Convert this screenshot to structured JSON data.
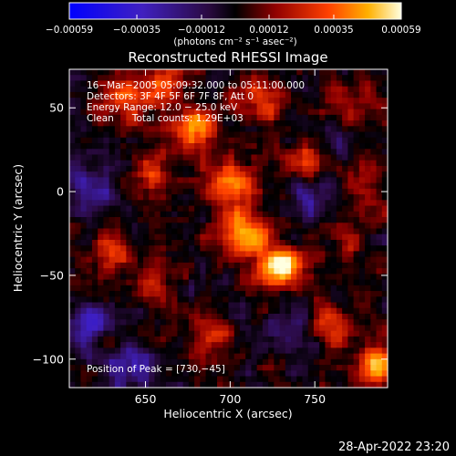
{
  "chart_data": {
    "type": "heatmap",
    "title": "Reconstructed RHESSI Image",
    "xlabel": "Heliocentric X (arcsec)",
    "ylabel": "Heliocentric Y (arcsec)",
    "xlim": [
      605,
      793
    ],
    "ylim": [
      -117,
      73
    ],
    "x_ticks": [
      650,
      700,
      750
    ],
    "y_ticks": [
      50,
      0,
      -50,
      -100
    ],
    "x_tick_labels": [
      "650",
      "700",
      "750"
    ],
    "y_tick_labels": [
      "50",
      "0",
      "−50",
      "−100"
    ],
    "colorbar": {
      "ticks": [
        -0.00059,
        -0.00035,
        -0.00012,
        0.00012,
        0.00035,
        0.00059
      ],
      "tick_labels": [
        "−0.00059",
        "−0.00035",
        "−0.00012",
        "0.00012",
        "0.00035",
        "0.00059"
      ],
      "units_label": "(photons cm⁻² s⁻¹ asec⁻²)",
      "range": [
        -0.00059,
        0.00059
      ]
    },
    "annotations": [
      "16−Mar−2005 05:09:32.000 to 05:11:00.000",
      "Detectors: 3F 4F 5F 6F 7F 8F, Att 0",
      "Energy Range: 12.0 − 25.0 keV",
      "Clean      Total counts: 1.29E+03"
    ],
    "peak_label": "Position of Peak = [730,−45]",
    "sources": [
      {
        "x": 730,
        "y": -45,
        "amp": 0.00059,
        "sigma": 9
      },
      {
        "x": 708,
        "y": -25,
        "amp": 0.00046,
        "sigma": 11
      },
      {
        "x": 680,
        "y": 40,
        "amp": 0.00048,
        "sigma": 9
      },
      {
        "x": 720,
        "y": 55,
        "amp": 0.00038,
        "sigma": 9
      },
      {
        "x": 700,
        "y": 5,
        "amp": 0.00042,
        "sigma": 10
      },
      {
        "x": 655,
        "y": 10,
        "amp": 0.00026,
        "sigma": 9
      },
      {
        "x": 640,
        "y": 55,
        "amp": 0.00036,
        "sigma": 10
      },
      {
        "x": 660,
        "y": 65,
        "amp": 0.00034,
        "sigma": 8
      },
      {
        "x": 630,
        "y": -35,
        "amp": 0.00026,
        "sigma": 9
      },
      {
        "x": 655,
        "y": -55,
        "amp": 0.0002,
        "sigma": 8
      },
      {
        "x": 690,
        "y": -85,
        "amp": 0.00026,
        "sigma": 9
      },
      {
        "x": 770,
        "y": 50,
        "amp": 0.00024,
        "sigma": 10
      },
      {
        "x": 770,
        "y": -30,
        "amp": 0.00022,
        "sigma": 9
      },
      {
        "x": 785,
        "y": -105,
        "amp": 0.00046,
        "sigma": 8
      },
      {
        "x": 760,
        "y": -80,
        "amp": 0.00026,
        "sigma": 8
      },
      {
        "x": 780,
        "y": 5,
        "amp": 0.0002,
        "sigma": 8
      },
      {
        "x": 745,
        "y": 20,
        "amp": 0.0002,
        "sigma": 8
      },
      {
        "x": 615,
        "y": -80,
        "amp": -0.00026,
        "sigma": 10
      },
      {
        "x": 640,
        "y": -105,
        "amp": -0.00024,
        "sigma": 10
      },
      {
        "x": 620,
        "y": 0,
        "amp": -0.00022,
        "sigma": 10
      },
      {
        "x": 730,
        "y": -80,
        "amp": -0.00018,
        "sigma": 9
      },
      {
        "x": 760,
        "y": 35,
        "amp": -0.00014,
        "sigma": 9
      },
      {
        "x": 745,
        "y": -10,
        "amp": -0.00016,
        "sigma": 9
      }
    ]
  },
  "footer": {
    "timestamp": "28-Apr-2022 23:20"
  },
  "colors": {
    "background": "#000000",
    "text": "#ffffff",
    "colormap": [
      "#0000ff",
      "#3a1a8a",
      "#1a0a20",
      "#6a0000",
      "#e02000",
      "#ff8a00",
      "#ffffb0"
    ]
  }
}
